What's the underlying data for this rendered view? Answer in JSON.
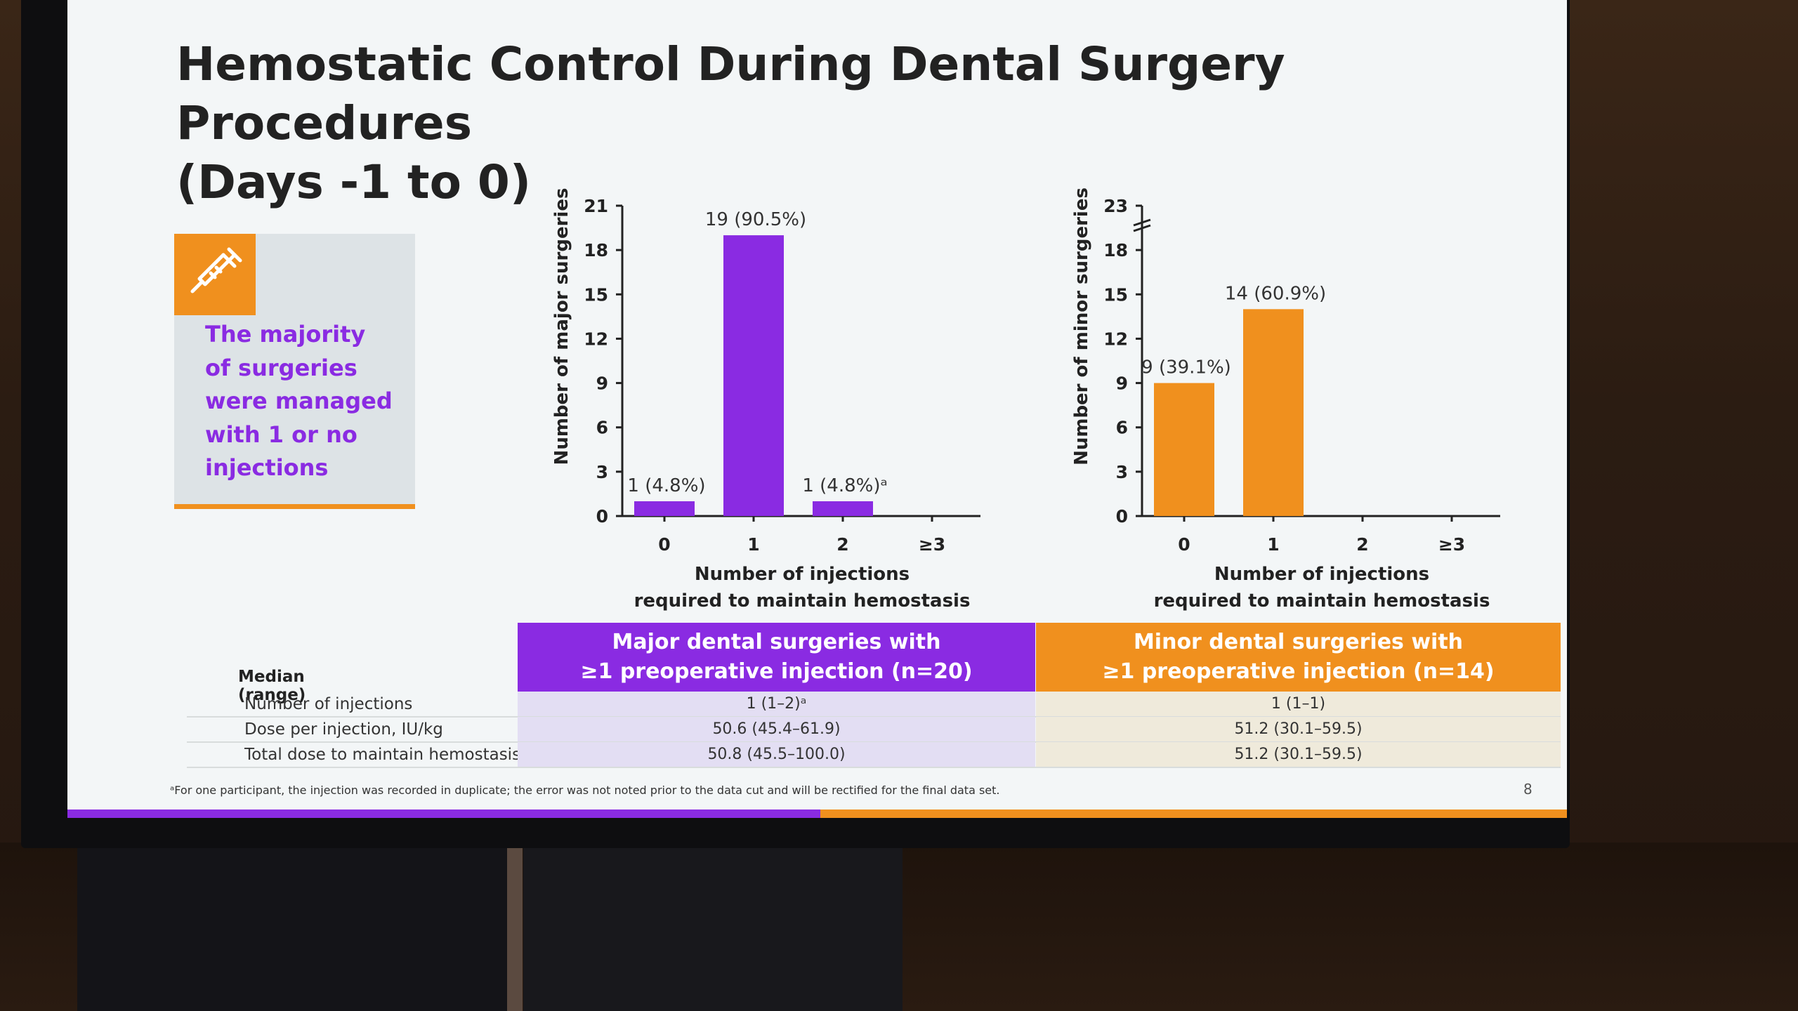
{
  "slide": {
    "title_line1": "Hemostatic Control During Dental Surgery Procedures",
    "title_line2": "(Days -1 to 0)",
    "callout_lines": [
      "The majority",
      "of surgeries",
      "were managed",
      "with 1 or no",
      "injections"
    ],
    "icon": "syringe-icon",
    "footnote": "ᵃFor one participant, the injection was recorded in duplicate; the error was not noted prior to the data cut and will be rectified for the final data set.",
    "page_number": "8"
  },
  "chart_data": [
    {
      "type": "bar",
      "categories": [
        "0",
        "1",
        "2",
        "≥3"
      ],
      "values": [
        1,
        19,
        1,
        0
      ],
      "data_labels": [
        "1 (4.8%)",
        "19 (90.5%)",
        "1 (4.8%)ᵃ",
        ""
      ],
      "ylabel": "Number of major surgeries",
      "xlabel_line1": "Number of injections",
      "xlabel_line2": "required to maintain hemostasis",
      "yticks": [
        "0",
        "3",
        "6",
        "9",
        "12",
        "15",
        "18",
        "21"
      ],
      "ylim": [
        0,
        21
      ],
      "color": "#8a2be2",
      "grid": false
    },
    {
      "type": "bar",
      "categories": [
        "0",
        "1",
        "2",
        "≥3"
      ],
      "values": [
        9,
        14,
        0,
        0
      ],
      "data_labels": [
        "9 (39.1%)",
        "14 (60.9%)",
        "",
        ""
      ],
      "ylabel": "Number of minor surgeries",
      "xlabel_line1": "Number of injections",
      "xlabel_line2": "required to maintain hemostasis",
      "yticks": [
        "0",
        "3",
        "6",
        "9",
        "12",
        "15",
        "18",
        "23"
      ],
      "ylim": [
        0,
        23
      ],
      "axis_break": true,
      "color": "#f0901e",
      "grid": false
    }
  ],
  "table": {
    "corner": "Median (range)",
    "col1_header_line1": "Major dental surgeries with",
    "col1_header_line2": "≥1 preoperative injection  (n=20)",
    "col2_header_line1": "Minor dental surgeries with",
    "col2_header_line2": "≥1 preoperative injection (n=14)",
    "rows": [
      {
        "label": "Number of injections",
        "major": "1 (1–2)ᵃ",
        "minor": "1 (1–1)"
      },
      {
        "label": "Dose per injection, IU/kg",
        "major": "50.6 (45.4–61.9)",
        "minor": "51.2 (30.1–59.5)"
      },
      {
        "label": "Total dose to maintain hemostasis",
        "major": "50.8 (45.5–100.0)",
        "minor": "51.2 (30.1–59.5)"
      }
    ],
    "col1_color": "#8a2be2",
    "col2_color": "#f0901e"
  }
}
